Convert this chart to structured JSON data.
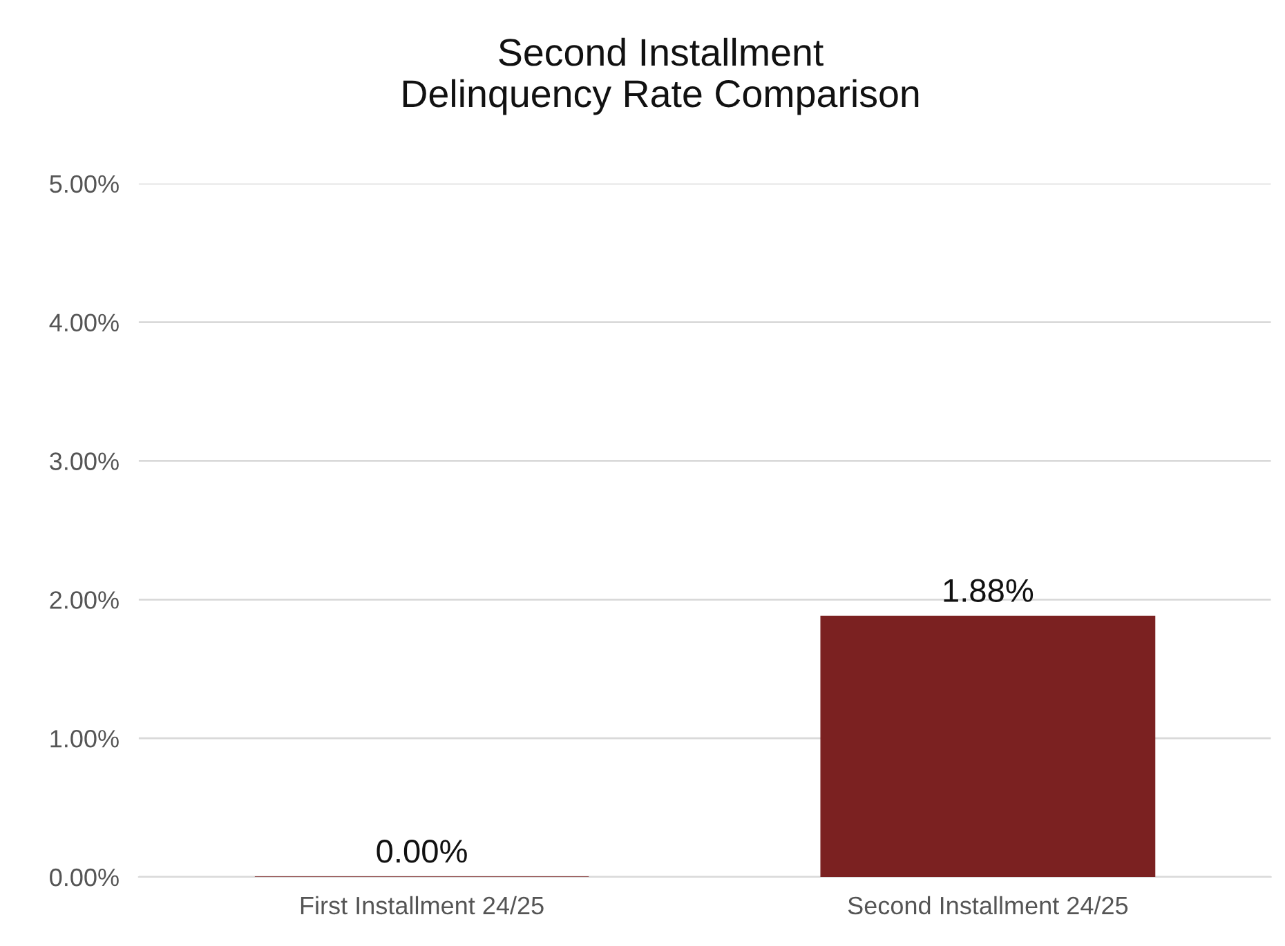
{
  "chart_data": {
    "type": "bar",
    "title": "Second Installment\nDelinquency Rate Comparison",
    "categories": [
      "First Installment 24/25",
      "Second Installment 24/25"
    ],
    "values": [
      0,
      1.88
    ],
    "color": "#7b2121",
    "value_labels": [
      "0.00%",
      "1.88%"
    ],
    "ylim": [
      0,
      5
    ],
    "yticks": [
      {
        "value": 0,
        "label": "0.00%"
      },
      {
        "value": 1,
        "label": "1.00%"
      },
      {
        "value": 2,
        "label": "2.00%"
      },
      {
        "value": 3,
        "label": "3.00%"
      },
      {
        "value": 4,
        "label": "4.00%"
      },
      {
        "value": 5,
        "label": "5.00%"
      }
    ],
    "grid": "y",
    "legend": false
  }
}
